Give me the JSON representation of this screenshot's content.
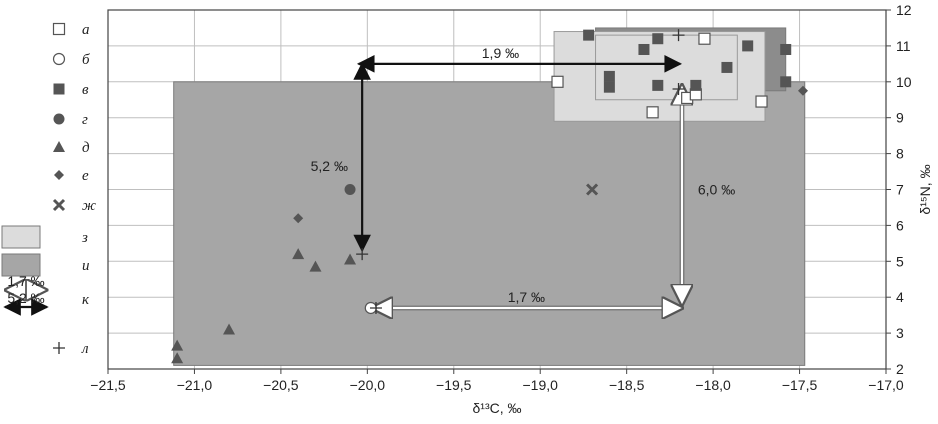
{
  "chart_data": {
    "type": "scatter",
    "xlabel": "δ¹³C, ‰",
    "ylabel": "δ¹⁵N, ‰",
    "xlim": [
      -21.5,
      -17.0
    ],
    "ylim": [
      2,
      12
    ],
    "x_ticks": [
      "−21,5",
      "−21,0",
      "−20,5",
      "−20,0",
      "−19,5",
      "−19,0",
      "−18,5",
      "−18,0",
      "−17,5",
      "−17,0"
    ],
    "y_ticks": [
      "2",
      "3",
      "4",
      "5",
      "6",
      "7",
      "8",
      "9",
      "10",
      "11",
      "12"
    ],
    "grid": true,
    "legend_position": "left",
    "legend": [
      {
        "key": "a",
        "label": "а",
        "marker": "open-square"
      },
      {
        "key": "b",
        "label": "б",
        "marker": "open-circle"
      },
      {
        "key": "v",
        "label": "в",
        "marker": "filled-square"
      },
      {
        "key": "g",
        "label": "г",
        "marker": "filled-circle"
      },
      {
        "key": "d",
        "label": "д",
        "marker": "filled-triangle"
      },
      {
        "key": "e",
        "label": "е",
        "marker": "filled-diamond"
      },
      {
        "key": "zh",
        "label": "ж",
        "marker": "x-cross"
      },
      {
        "key": "z",
        "label": "з",
        "marker": "light-rect"
      },
      {
        "key": "i",
        "label": "и",
        "marker": "dark-rect"
      },
      {
        "key": "k",
        "label": "к",
        "marker": "arrows",
        "arrow_labels": [
          "1,7 ‰",
          "5,2 ‰"
        ]
      },
      {
        "key": "l",
        "label": "л",
        "marker": "plus"
      }
    ],
    "colors": {
      "dark_area": "#a6a6a6",
      "mid_area": "#8c8c8c",
      "light_area": "#dcdcdc",
      "marker": "#555555",
      "frame": "#444444"
    },
    "areas": [
      {
        "series": "i",
        "x": [
          -21.12,
          -17.47
        ],
        "y": [
          2.1,
          10.0
        ]
      },
      {
        "series": "i",
        "x": [
          -18.68,
          -17.58
        ],
        "y": [
          9.75,
          11.5
        ]
      },
      {
        "series": "z",
        "x": [
          -18.92,
          -17.7
        ],
        "y": [
          8.9,
          11.4
        ]
      },
      {
        "series": "z",
        "x": [
          -18.68,
          -17.86
        ],
        "y": [
          9.5,
          11.3
        ]
      }
    ],
    "series": [
      {
        "key": "a",
        "points": [
          [
            -18.9,
            10.0
          ],
          [
            -18.35,
            9.15
          ],
          [
            -18.05,
            11.2
          ],
          [
            -17.72,
            9.45
          ],
          [
            -18.15,
            9.55
          ],
          [
            -18.1,
            9.65
          ]
        ]
      },
      {
        "key": "b",
        "points": [
          [
            -19.98,
            3.7
          ]
        ]
      },
      {
        "key": "v",
        "points": [
          [
            -18.72,
            11.3
          ],
          [
            -18.6,
            10.15
          ],
          [
            -18.6,
            9.85
          ],
          [
            -18.4,
            10.9
          ],
          [
            -18.32,
            11.2
          ],
          [
            -18.32,
            9.9
          ],
          [
            -18.1,
            9.9
          ],
          [
            -17.92,
            10.4
          ],
          [
            -17.8,
            11.0
          ],
          [
            -17.58,
            10.9
          ],
          [
            -17.58,
            10.0
          ]
        ]
      },
      {
        "key": "g",
        "points": [
          [
            -20.1,
            7.0
          ]
        ]
      },
      {
        "key": "d",
        "points": [
          [
            -21.1,
            2.65
          ],
          [
            -21.1,
            2.3
          ],
          [
            -20.8,
            3.1
          ],
          [
            -20.4,
            5.2
          ],
          [
            -20.3,
            4.85
          ],
          [
            -20.1,
            5.05
          ]
        ]
      },
      {
        "key": "e",
        "points": [
          [
            -20.4,
            6.2
          ],
          [
            -17.48,
            9.75
          ]
        ]
      },
      {
        "key": "zh",
        "points": [
          [
            -18.7,
            7.0
          ]
        ]
      },
      {
        "key": "l",
        "points": [
          [
            -20.03,
            5.2
          ],
          [
            -18.2,
            9.8
          ],
          [
            -18.2,
            11.3
          ],
          [
            -19.95,
            3.7
          ]
        ]
      }
    ],
    "arrows": [
      {
        "style": "black",
        "label": "1,9 ‰",
        "from": [
          -20.05,
          10.5
        ],
        "to": [
          -18.19,
          10.5
        ],
        "label_at": [
          -19.23,
          10.8
        ]
      },
      {
        "style": "black",
        "label": "5,2 ‰",
        "from": [
          -20.03,
          10.5
        ],
        "to": [
          -20.03,
          5.3
        ],
        "label_at": [
          -20.22,
          7.65
        ]
      },
      {
        "style": "white",
        "label": "6,0 ‰",
        "from": [
          -18.18,
          9.9
        ],
        "to": [
          -18.18,
          3.8
        ],
        "label_at": [
          -17.98,
          7.0
        ]
      },
      {
        "style": "white",
        "label": "1,7 ‰",
        "from": [
          -19.97,
          3.7
        ],
        "to": [
          -18.18,
          3.7
        ],
        "label_at": [
          -19.08,
          4.0
        ]
      }
    ]
  }
}
